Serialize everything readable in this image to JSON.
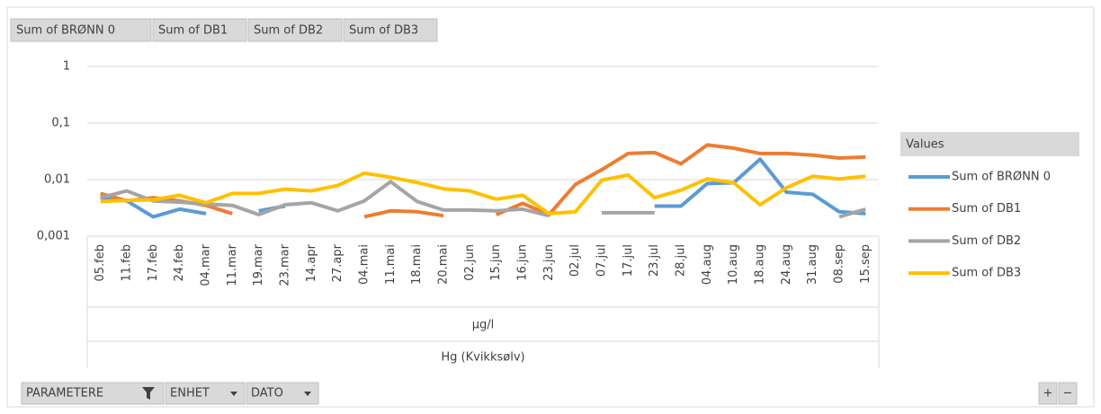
{
  "chart_data": {
    "type": "line",
    "field_buttons": [
      "Sum of BRØNN 0",
      "Sum of DB1",
      "Sum of DB2",
      "Sum of DB3"
    ],
    "filter_buttons": [
      "PARAMETERE",
      "ENHET",
      "DATO"
    ],
    "zoom_buttons": [
      "+",
      "−"
    ],
    "legend_title": "Values",
    "legend": "right",
    "axis_labels": [
      "µg/l",
      "Hg (Kvikksølv)"
    ],
    "categories": [
      "05.feb",
      "11.feb",
      "17.feb",
      "24.feb",
      "04.mar",
      "11.mar",
      "19.mar",
      "23.mar",
      "14.apr",
      "27.apr",
      "04.mai",
      "11.mai",
      "18.mai",
      "20.mai",
      "02.jun",
      "15.jun",
      "16.jun",
      "23.jun",
      "02.jul",
      "07.jul",
      "17.jul",
      "23.jul",
      "28.jul",
      "04.aug",
      "10.aug",
      "18.aug",
      "24.aug",
      "31.aug",
      "08.sep",
      "15.sep"
    ],
    "series": [
      {
        "name": "Sum of BRØNN 0",
        "color": "#5b9bd5",
        "values": [
          0.0048,
          0.0042,
          0.0022,
          0.003,
          0.0025,
          null,
          0.0028,
          0.0034,
          null,
          null,
          null,
          null,
          null,
          null,
          null,
          null,
          null,
          null,
          null,
          null,
          null,
          0.0034,
          0.0034,
          0.0085,
          0.0088,
          0.023,
          0.006,
          0.0055,
          0.0027,
          0.0025
        ]
      },
      {
        "name": "Sum of DB1",
        "color": "#ed7d31",
        "values": [
          0.0057,
          0.0042,
          0.0048,
          0.0042,
          0.0035,
          0.0025,
          null,
          null,
          null,
          null,
          0.0022,
          0.0028,
          0.0027,
          0.0023,
          null,
          0.0024,
          0.0038,
          0.0024,
          0.0082,
          0.015,
          0.029,
          0.03,
          0.019,
          0.041,
          0.036,
          0.029,
          0.029,
          0.027,
          0.024,
          0.025
        ]
      },
      {
        "name": "Sum of DB2",
        "color": "#a5a5a5",
        "values": [
          0.0048,
          0.0063,
          0.0042,
          0.004,
          0.0037,
          0.0035,
          0.0024,
          0.0036,
          0.0039,
          0.0028,
          0.0042,
          0.0092,
          0.0041,
          0.0029,
          0.0029,
          0.0028,
          0.003,
          0.0023,
          null,
          0.0026,
          0.0026,
          0.0026,
          null,
          null,
          null,
          null,
          null,
          null,
          0.0022,
          0.003
        ]
      },
      {
        "name": "Sum of DB3",
        "color": "#ffc000",
        "values": [
          0.0041,
          0.0043,
          0.0044,
          0.0053,
          0.0039,
          0.0057,
          0.0057,
          0.0068,
          0.0063,
          0.0079,
          0.013,
          0.011,
          0.0089,
          0.0069,
          0.0063,
          0.0045,
          0.0053,
          0.0025,
          0.0027,
          0.0098,
          0.012,
          0.0048,
          0.0065,
          0.0103,
          0.0088,
          0.0036,
          0.0072,
          0.0115,
          0.0103,
          0.0115
        ]
      }
    ],
    "log_y": true,
    "ylim": [
      0.001,
      1
    ],
    "yticks": [
      {
        "value": 0.001,
        "label": "0,001"
      },
      {
        "value": 0.01,
        "label": "0,01"
      },
      {
        "value": 0.1,
        "label": "0,1"
      },
      1
    ],
    "grid": true
  }
}
